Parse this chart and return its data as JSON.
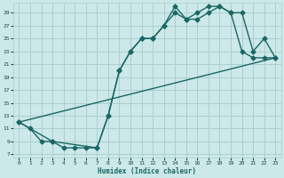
{
  "xlabel": "Humidex (Indice chaleur)",
  "bg_color": "#cce8e8",
  "grid_color": "#aacfcf",
  "line_color": "#1a6666",
  "xlim": [
    -0.5,
    23.5
  ],
  "ylim": [
    6.5,
    30.5
  ],
  "xticks": [
    0,
    1,
    2,
    3,
    4,
    5,
    6,
    7,
    8,
    9,
    10,
    11,
    12,
    13,
    14,
    15,
    16,
    17,
    18,
    19,
    20,
    21,
    22,
    23
  ],
  "yticks": [
    7,
    9,
    11,
    13,
    15,
    17,
    19,
    21,
    23,
    25,
    27,
    29
  ],
  "line1_x": [
    0,
    1,
    2,
    3,
    4,
    5,
    6,
    7,
    8,
    9,
    10,
    11,
    12,
    13,
    14,
    15,
    16,
    17,
    18,
    19,
    20,
    21,
    22,
    23
  ],
  "line1_y": [
    12,
    11,
    9,
    9,
    8,
    8,
    8,
    8,
    13,
    20,
    23,
    25,
    25,
    27,
    30,
    28,
    29,
    30,
    30,
    29,
    23,
    22,
    22,
    22
  ],
  "line2_x": [
    0,
    3,
    7,
    8,
    9,
    10,
    11,
    12,
    13,
    14,
    15,
    16,
    17,
    18,
    19,
    20,
    21,
    22,
    23
  ],
  "line2_y": [
    12,
    9,
    8,
    13,
    20,
    23,
    25,
    25,
    27,
    29,
    28,
    28,
    29,
    30,
    29,
    29,
    23,
    25,
    22
  ],
  "line3_x": [
    0,
    23
  ],
  "line3_y": [
    12,
    22
  ],
  "marker_size": 2.5,
  "linewidth": 1.0
}
